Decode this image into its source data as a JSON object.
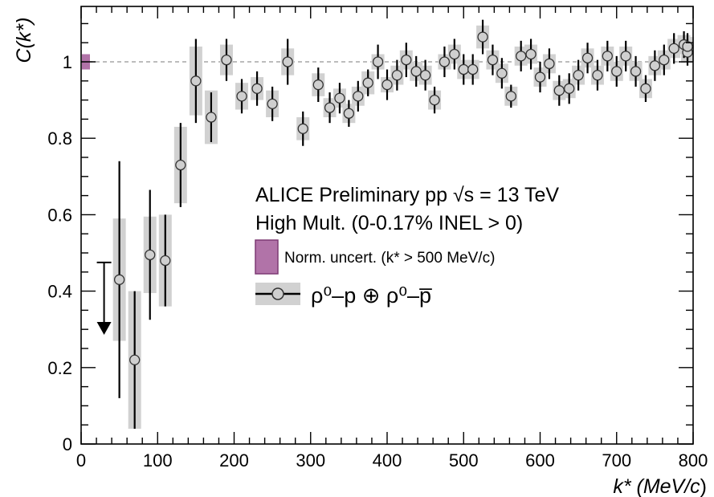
{
  "chart_data": {
    "type": "scatter",
    "x_tick_labels": [
      "0",
      "100",
      "200",
      "300",
      "400",
      "500",
      "600",
      "700",
      "800"
    ],
    "y_tick_labels": [
      "0",
      "0.2",
      "0.4",
      "0.6",
      "0.8",
      "1"
    ],
    "xlim": [
      0,
      800
    ],
    "ylim": [
      0,
      1.15
    ],
    "ylabel": "C(k*)",
    "xlabel": {
      "pre": "k* (MeV/",
      "c": "c",
      "post": ")"
    },
    "reference_line_y": 1.0,
    "legend": {
      "line1_pre": "ALICE Preliminary pp  ",
      "line1_sqrt": "√",
      "line1_post": "s = 13 TeV",
      "line2": "High Mult. (0-0.17% INEL > 0)",
      "norm_label": "Norm. uncert. (k* > 500 MeV/c)",
      "series_label": "ρ⁰–p ⊕ ρ⁰–p̅"
    },
    "colors": {
      "norm_box": "#b173a8",
      "norm_box_edge": "#7d3a74",
      "syst_box": "#d1d1d1",
      "marker_fill": "#cfcfcf",
      "reference_line": "#a6a6a6"
    },
    "norm_uncert": {
      "x": 5,
      "ylow": 0.98,
      "yhigh": 1.02
    },
    "upper_limit": {
      "x": 30,
      "y": 0.475,
      "arrow_to": 0.29
    },
    "points": [
      {
        "x": 50,
        "y": 0.43,
        "stat": 0.31,
        "syst": 0.16
      },
      {
        "x": 70,
        "y": 0.22,
        "stat": 0.18,
        "syst": 0.18
      },
      {
        "x": 90,
        "y": 0.495,
        "stat": 0.17,
        "syst": 0.1
      },
      {
        "x": 110,
        "y": 0.48,
        "stat": 0.12,
        "syst": 0.12
      },
      {
        "x": 130,
        "y": 0.73,
        "stat": 0.11,
        "syst": 0.1
      },
      {
        "x": 150,
        "y": 0.95,
        "stat": 0.11,
        "syst": 0.09
      },
      {
        "x": 170,
        "y": 0.855,
        "stat": 0.065,
        "syst": 0.07
      },
      {
        "x": 190,
        "y": 1.005,
        "stat": 0.055,
        "syst": 0.04
      },
      {
        "x": 210,
        "y": 0.91,
        "stat": 0.045,
        "syst": 0.035
      },
      {
        "x": 230,
        "y": 0.93,
        "stat": 0.045,
        "syst": 0.03
      },
      {
        "x": 250,
        "y": 0.89,
        "stat": 0.045,
        "syst": 0.035
      },
      {
        "x": 270,
        "y": 1.0,
        "stat": 0.06,
        "syst": 0.035
      },
      {
        "x": 290,
        "y": 0.825,
        "stat": 0.045,
        "syst": 0.03
      },
      {
        "x": 310,
        "y": 0.94,
        "stat": 0.045,
        "syst": 0.03
      },
      {
        "x": 325,
        "y": 0.88,
        "stat": 0.04,
        "syst": 0.025
      },
      {
        "x": 338,
        "y": 0.905,
        "stat": 0.04,
        "syst": 0.025
      },
      {
        "x": 350,
        "y": 0.865,
        "stat": 0.035,
        "syst": 0.025
      },
      {
        "x": 362,
        "y": 0.91,
        "stat": 0.04,
        "syst": 0.025
      },
      {
        "x": 375,
        "y": 0.945,
        "stat": 0.035,
        "syst": 0.03
      },
      {
        "x": 388,
        "y": 1.0,
        "stat": 0.045,
        "syst": 0.02
      },
      {
        "x": 400,
        "y": 0.94,
        "stat": 0.04,
        "syst": 0.02
      },
      {
        "x": 413,
        "y": 0.965,
        "stat": 0.04,
        "syst": 0.025
      },
      {
        "x": 425,
        "y": 1.005,
        "stat": 0.045,
        "syst": 0.025
      },
      {
        "x": 438,
        "y": 0.975,
        "stat": 0.04,
        "syst": 0.025
      },
      {
        "x": 450,
        "y": 0.965,
        "stat": 0.04,
        "syst": 0.025
      },
      {
        "x": 462,
        "y": 0.9,
        "stat": 0.035,
        "syst": 0.025
      },
      {
        "x": 475,
        "y": 1.0,
        "stat": 0.04,
        "syst": 0.02
      },
      {
        "x": 488,
        "y": 1.02,
        "stat": 0.04,
        "syst": 0.025
      },
      {
        "x": 500,
        "y": 0.98,
        "stat": 0.04,
        "syst": 0.025
      },
      {
        "x": 512,
        "y": 0.98,
        "stat": 0.04,
        "syst": 0.025
      },
      {
        "x": 525,
        "y": 1.065,
        "stat": 0.045,
        "syst": 0.03
      },
      {
        "x": 538,
        "y": 1.005,
        "stat": 0.04,
        "syst": 0.025
      },
      {
        "x": 550,
        "y": 0.97,
        "stat": 0.04,
        "syst": 0.025
      },
      {
        "x": 562,
        "y": 0.91,
        "stat": 0.03,
        "syst": 0.025
      },
      {
        "x": 575,
        "y": 1.015,
        "stat": 0.04,
        "syst": 0.025
      },
      {
        "x": 588,
        "y": 1.02,
        "stat": 0.04,
        "syst": 0.025
      },
      {
        "x": 600,
        "y": 0.96,
        "stat": 0.04,
        "syst": 0.025
      },
      {
        "x": 612,
        "y": 0.995,
        "stat": 0.04,
        "syst": 0.025
      },
      {
        "x": 625,
        "y": 0.925,
        "stat": 0.04,
        "syst": 0.025
      },
      {
        "x": 638,
        "y": 0.93,
        "stat": 0.04,
        "syst": 0.025
      },
      {
        "x": 650,
        "y": 0.965,
        "stat": 0.04,
        "syst": 0.025
      },
      {
        "x": 662,
        "y": 1.01,
        "stat": 0.04,
        "syst": 0.025
      },
      {
        "x": 675,
        "y": 0.965,
        "stat": 0.04,
        "syst": 0.025
      },
      {
        "x": 688,
        "y": 1.015,
        "stat": 0.04,
        "syst": 0.025
      },
      {
        "x": 700,
        "y": 0.975,
        "stat": 0.04,
        "syst": 0.025
      },
      {
        "x": 712,
        "y": 1.015,
        "stat": 0.04,
        "syst": 0.025
      },
      {
        "x": 725,
        "y": 0.975,
        "stat": 0.04,
        "syst": 0.025
      },
      {
        "x": 738,
        "y": 0.93,
        "stat": 0.035,
        "syst": 0.025
      },
      {
        "x": 750,
        "y": 0.99,
        "stat": 0.04,
        "syst": 0.025
      },
      {
        "x": 762,
        "y": 1.005,
        "stat": 0.04,
        "syst": 0.025
      },
      {
        "x": 775,
        "y": 1.035,
        "stat": 0.04,
        "syst": 0.025
      },
      {
        "x": 788,
        "y": 1.045,
        "stat": 0.035,
        "syst": 0.025
      },
      {
        "x": 800,
        "y": 1.025,
        "stat": 0.035,
        "syst": 0.025
      },
      {
        "x": 812,
        "y": 1.04,
        "stat": 0.035,
        "syst": 0.025
      }
    ]
  }
}
